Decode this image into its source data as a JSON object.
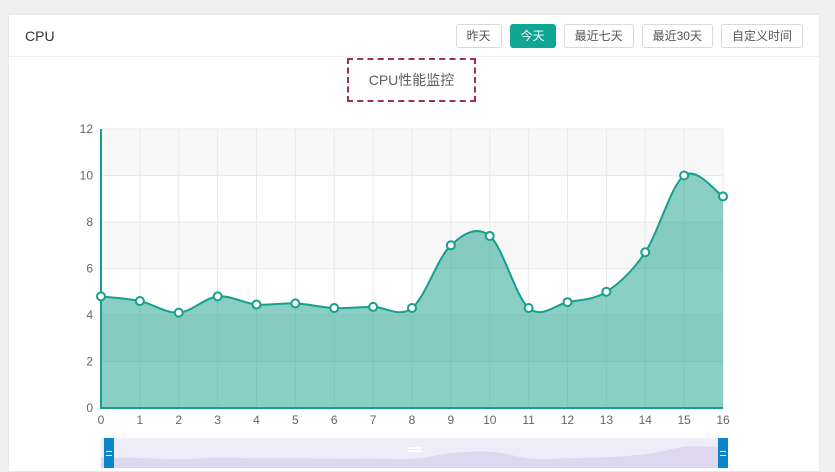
{
  "page": {
    "background": "#f0f0f0",
    "card_background": "#ffffff"
  },
  "header": {
    "title": "CPU",
    "active_button_color": "#0fa693",
    "buttons": [
      {
        "id": "yesterday",
        "label": "昨天",
        "active": false
      },
      {
        "id": "today",
        "label": "今天",
        "active": true
      },
      {
        "id": "last-7-days",
        "label": "最近七天",
        "active": false
      },
      {
        "id": "last-30-days",
        "label": "最近30天",
        "active": false
      },
      {
        "id": "custom-range",
        "label": "自定义时间",
        "active": false
      }
    ]
  },
  "chart_data": {
    "type": "area",
    "title": "CPU性能监控",
    "x": [
      0,
      1,
      2,
      3,
      4,
      5,
      6,
      7,
      8,
      9,
      10,
      11,
      12,
      13,
      14,
      15,
      16
    ],
    "values": [
      4.8,
      4.6,
      4.1,
      4.8,
      4.45,
      4.5,
      4.3,
      4.35,
      4.3,
      7.0,
      7.4,
      4.3,
      4.55,
      5.0,
      6.7,
      10.0,
      9.1
    ],
    "xlabel": "",
    "ylabel": "",
    "ylim": [
      0,
      12
    ],
    "y_ticks": [
      0,
      2,
      4,
      6,
      8,
      10,
      12
    ],
    "smooth": true,
    "grid": "both",
    "split_area_bands": true,
    "legend": null,
    "colors": {
      "line": "#14a08c",
      "area_fill": "#14a08c",
      "area_opacity": 0.5,
      "point_fill": "#ffffff",
      "axis": "#14a08c",
      "gridline": "#e9e9e9",
      "band": "#f7f7f7",
      "tick_label": "#666666",
      "title_text": "#5e5e5e",
      "title_border": "#a2304d"
    },
    "datazoom": {
      "range_percent": [
        0,
        100
      ],
      "track_color": "#eeecf8",
      "silhouette_color": "#ddd8f0",
      "handle_color": "#0b84c8"
    }
  }
}
